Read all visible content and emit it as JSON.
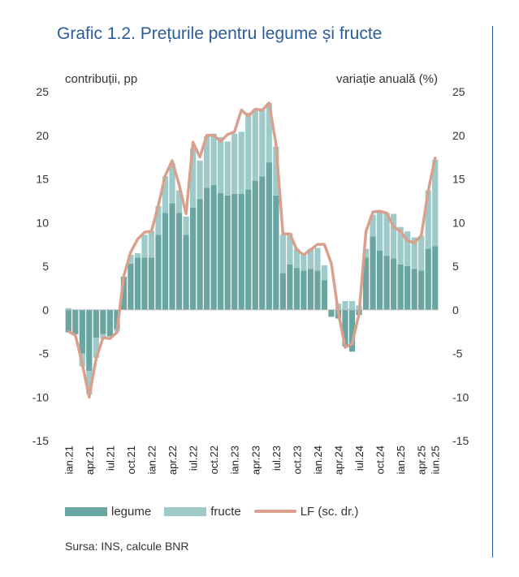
{
  "header": {
    "title": "Grafic 1.2. Prețurile pentru legume și fructe",
    "left_unit": "contribuții, pp",
    "right_unit": "variație anuală (%)"
  },
  "footer": {
    "source": "Sursa: INS, calcule BNR"
  },
  "colors": {
    "legume": "#6aa5a1",
    "fructe": "#9ecbca",
    "lf": "#d9a08e",
    "title": "#2b5c9b"
  },
  "chart_data": {
    "type": "bar",
    "stacked": true,
    "title": "Grafic 1.2. Prețurile pentru legume și fructe",
    "ylabel_left": "contribuții, pp",
    "ylabel_right": "variație anuală (%)",
    "ylim": [
      -15,
      25
    ],
    "yticks": [
      -15,
      -10,
      -5,
      0,
      5,
      10,
      15,
      20,
      25
    ],
    "x_tick_labels": [
      "ian.21",
      "apr.21",
      "iul.21",
      "oct.21",
      "ian.22",
      "apr.22",
      "iul.22",
      "oct.22",
      "ian.23",
      "apr.23",
      "iul.23",
      "oct.23",
      "ian.24",
      "apr.24",
      "iul.24",
      "oct.24",
      "ian.25",
      "apr.25",
      "iun.25"
    ],
    "x_tick_index": [
      0,
      3,
      6,
      9,
      12,
      15,
      18,
      21,
      24,
      27,
      30,
      33,
      36,
      39,
      42,
      45,
      48,
      51,
      53
    ],
    "categories": [
      "ian.21",
      "feb.21",
      "mar.21",
      "apr.21",
      "mai.21",
      "iun.21",
      "iul.21",
      "aug.21",
      "sep.21",
      "oct.21",
      "nov.21",
      "dec.21",
      "ian.22",
      "feb.22",
      "mar.22",
      "apr.22",
      "mai.22",
      "iun.22",
      "iul.22",
      "aug.22",
      "sep.22",
      "oct.22",
      "nov.22",
      "dec.22",
      "ian.23",
      "feb.23",
      "mar.23",
      "apr.23",
      "mai.23",
      "iun.23",
      "iul.23",
      "aug.23",
      "sep.23",
      "oct.23",
      "nov.23",
      "dec.23",
      "ian.24",
      "feb.24",
      "mar.24",
      "apr.24",
      "mai.24",
      "iun.24",
      "iul.24",
      "aug.24",
      "sep.24",
      "oct.24",
      "nov.24",
      "dec.24",
      "ian.25",
      "feb.25",
      "mar.25",
      "apr.25",
      "mai.25",
      "iun.25"
    ],
    "series": [
      {
        "name": "legume",
        "kind": "bar",
        "values": [
          -2.6,
          -2.8,
          -5.0,
          -7.0,
          -3.2,
          -2.8,
          -3.0,
          -2.2,
          3.8,
          5.3,
          6.0,
          6.0,
          6.0,
          8.6,
          11.1,
          12.2,
          11.1,
          8.6,
          11.7,
          12.7,
          14.0,
          14.3,
          13.4,
          13.1,
          13.3,
          13.3,
          13.8,
          14.8,
          15.3,
          16.9,
          13.1,
          4.2,
          5.2,
          4.8,
          4.5,
          4.7,
          4.5,
          3.4,
          -0.8,
          -1.0,
          -4.2,
          -4.8,
          -0.6,
          6.0,
          8.4,
          6.8,
          6.2,
          5.9,
          5.2,
          5.0,
          4.7,
          4.5,
          7.0,
          7.3
        ]
      },
      {
        "name": "fructe",
        "kind": "bar",
        "values": [
          0.2,
          0.0,
          -1.5,
          -2.7,
          -2.3,
          -0.5,
          -0.1,
          -0.3,
          0.0,
          1.0,
          0.5,
          2.6,
          3.0,
          3.3,
          4.2,
          4.6,
          2.6,
          2.1,
          6.8,
          4.4,
          5.9,
          5.9,
          6.4,
          6.2,
          6.9,
          7.1,
          8.8,
          8.2,
          7.6,
          6.8,
          5.6,
          4.4,
          3.6,
          2.2,
          2.0,
          2.3,
          2.6,
          1.7,
          0.0,
          0.7,
          1.0,
          1.0,
          0.5,
          1.0,
          2.5,
          4.4,
          4.9,
          5.1,
          4.3,
          4.0,
          3.6,
          4.0,
          6.7,
          9.9
        ]
      },
      {
        "name": "LF (sc. dr.)",
        "kind": "line",
        "values": [
          -2.5,
          -2.9,
          -6.2,
          -10.0,
          -5.6,
          -3.2,
          -3.3,
          -2.6,
          3.9,
          6.6,
          8.1,
          8.9,
          9.0,
          12.0,
          15.4,
          17.1,
          14.3,
          11.0,
          19.2,
          17.5,
          20.0,
          20.0,
          19.3,
          20.1,
          20.4,
          22.9,
          22.2,
          23.0,
          22.9,
          23.7,
          19.0,
          8.7,
          8.7,
          6.9,
          6.3,
          6.9,
          7.5,
          7.5,
          5.3,
          -0.3,
          -4.3,
          -3.9,
          -0.5,
          9.0,
          11.2,
          11.3,
          11.1,
          9.5,
          9.0,
          7.9,
          7.7,
          8.5,
          13.6,
          17.4
        ]
      }
    ],
    "legend": [
      "legume",
      "fructe",
      "LF (sc. dr.)"
    ],
    "legend_position": "bottom"
  }
}
